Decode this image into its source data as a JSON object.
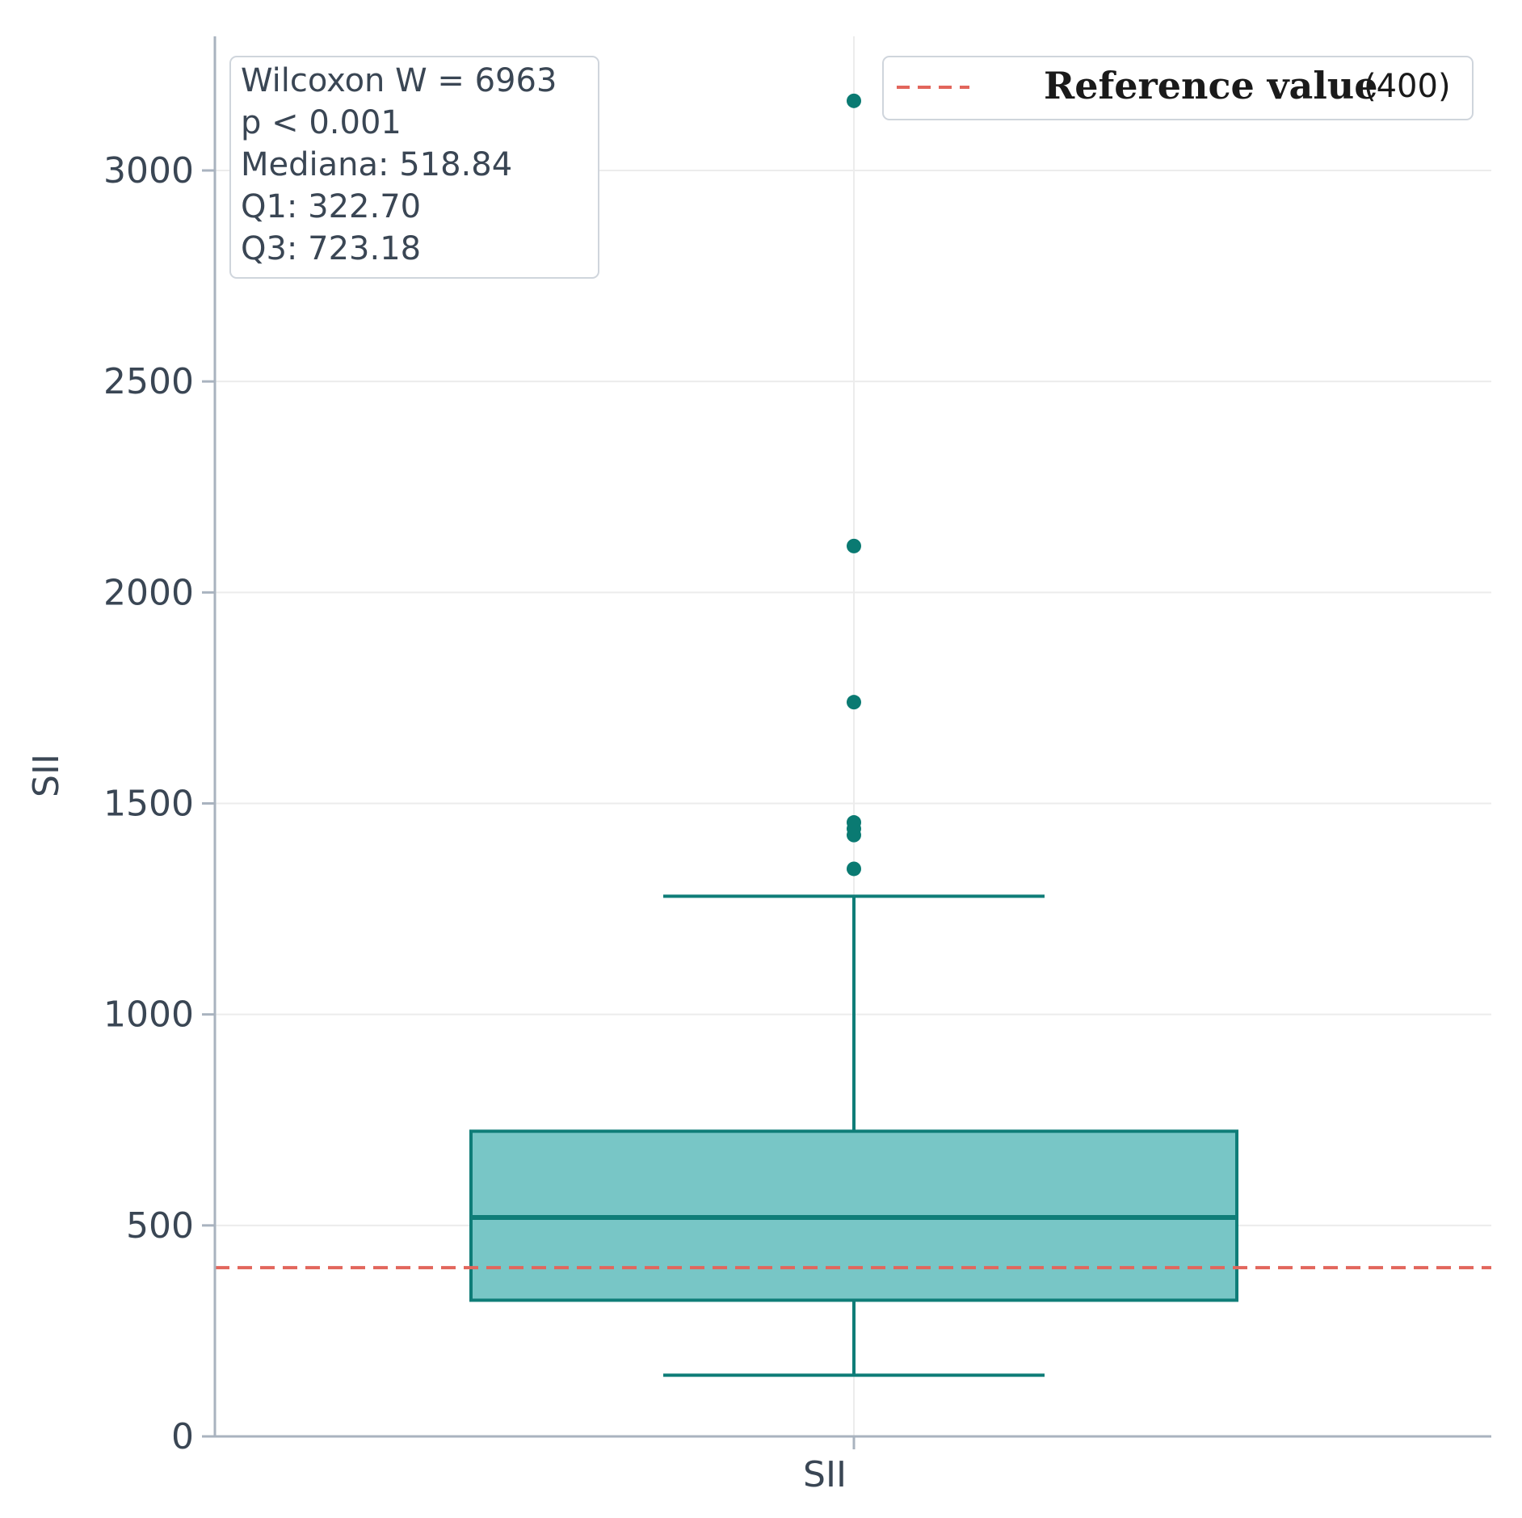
{
  "chart_data": {
    "type": "box",
    "title": "",
    "xlabel": "",
    "ylabel": "SII",
    "categories": [
      "SII"
    ],
    "ylim": [
      0,
      3300
    ],
    "yticks": [
      0,
      500,
      1000,
      1500,
      2000,
      2500,
      3000
    ],
    "ytick_labels": [
      "0",
      "500",
      "1000",
      "1500",
      "2000",
      "2500",
      "3000"
    ],
    "grid": true,
    "box": {
      "q1": 322.7,
      "median": 518.84,
      "q3": 723.18,
      "whisker_low": 145,
      "whisker_high": 1280,
      "outliers": [
        1345,
        1425,
        1440,
        1455,
        1740,
        2110,
        3165
      ]
    },
    "reference_line": {
      "value": 400
    },
    "legend": {
      "placement": "top-right",
      "label_main": "Reference value",
      "label_sub": "(400)"
    },
    "annotation": {
      "placement": "top-left",
      "lines": [
        "Wilcoxon W = 6963",
        "p < 0.001",
        "Mediana: 518.84",
        "Q1: 322.70",
        "Q3: 723.18"
      ]
    },
    "colors": {
      "box_fill": "#78c6c6",
      "box_edge": "#0f7d78",
      "outlier": "#0a7a72",
      "reference": "#e2665c",
      "axis": "#a9b3bf",
      "grid": "#ececec"
    }
  }
}
